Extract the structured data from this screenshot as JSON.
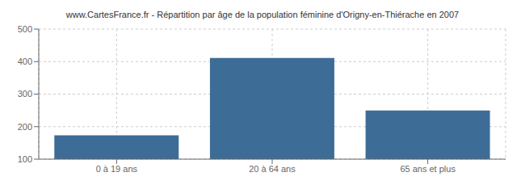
{
  "chart_data": {
    "type": "bar",
    "title": "www.CartesFrance.fr - Répartition par âge de la population féminine d'Origny-en-Thiérache en 2007",
    "categories": [
      "0 à 19 ans",
      "20 à 64 ans",
      "65 ans et plus"
    ],
    "values": [
      173,
      411,
      250
    ],
    "color": "#3d6d96",
    "ylim": [
      100,
      500
    ],
    "yticks": [
      100,
      200,
      300,
      400,
      500
    ],
    "grid": true
  }
}
